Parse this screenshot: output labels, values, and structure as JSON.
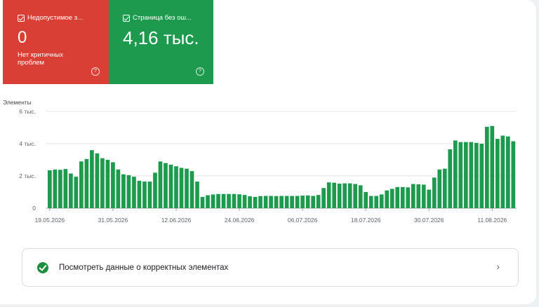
{
  "tiles": {
    "errors": {
      "label": "Недопустимое з...",
      "value": "0",
      "sub": "Нет критичных проблем",
      "color": "#d93f35"
    },
    "valid": {
      "label": "Страница без ош...",
      "value": "4,16 тыс.",
      "color": "#1e9a4f"
    },
    "help_glyph": "?"
  },
  "chart_data": {
    "type": "bar",
    "title": "",
    "ylabel": "Элементы",
    "ylim": [
      0,
      6000
    ],
    "y_ticks": [
      0,
      2000,
      4000,
      6000
    ],
    "y_tick_labels": [
      "0",
      "2 тыс.",
      "4 тыс.",
      "6 тыс."
    ],
    "x_tick_labels": [
      "19.05.2026",
      "31.05.2026",
      "12.06.2026",
      "24.06.2026",
      "06.07.2026",
      "18.07.2026",
      "30.07.2026",
      "11.08.2026"
    ],
    "bar_color": "#1e9a4f",
    "values": [
      2350,
      2400,
      2380,
      2430,
      2150,
      1950,
      2900,
      3050,
      3600,
      3400,
      3100,
      3000,
      2850,
      2400,
      2100,
      2050,
      1950,
      1700,
      1650,
      1650,
      2200,
      2900,
      2800,
      2700,
      2600,
      2500,
      2450,
      2300,
      1650,
      700,
      800,
      850,
      880,
      880,
      880,
      880,
      860,
      820,
      740,
      700,
      750,
      760,
      760,
      750,
      760,
      760,
      760,
      760,
      780,
      790,
      760,
      820,
      1250,
      1600,
      1580,
      1520,
      1540,
      1540,
      1500,
      1420,
      1000,
      760,
      760,
      850,
      1100,
      1200,
      1310,
      1310,
      1290,
      1500,
      1480,
      1460,
      1150,
      1900,
      2400,
      2450,
      3650,
      4200,
      4100,
      4100,
      4100,
      4050,
      4000,
      5050,
      5100,
      4300,
      4500,
      4450,
      4150
    ]
  },
  "link": {
    "label": "Посмотреть данные о корректных элементах"
  }
}
